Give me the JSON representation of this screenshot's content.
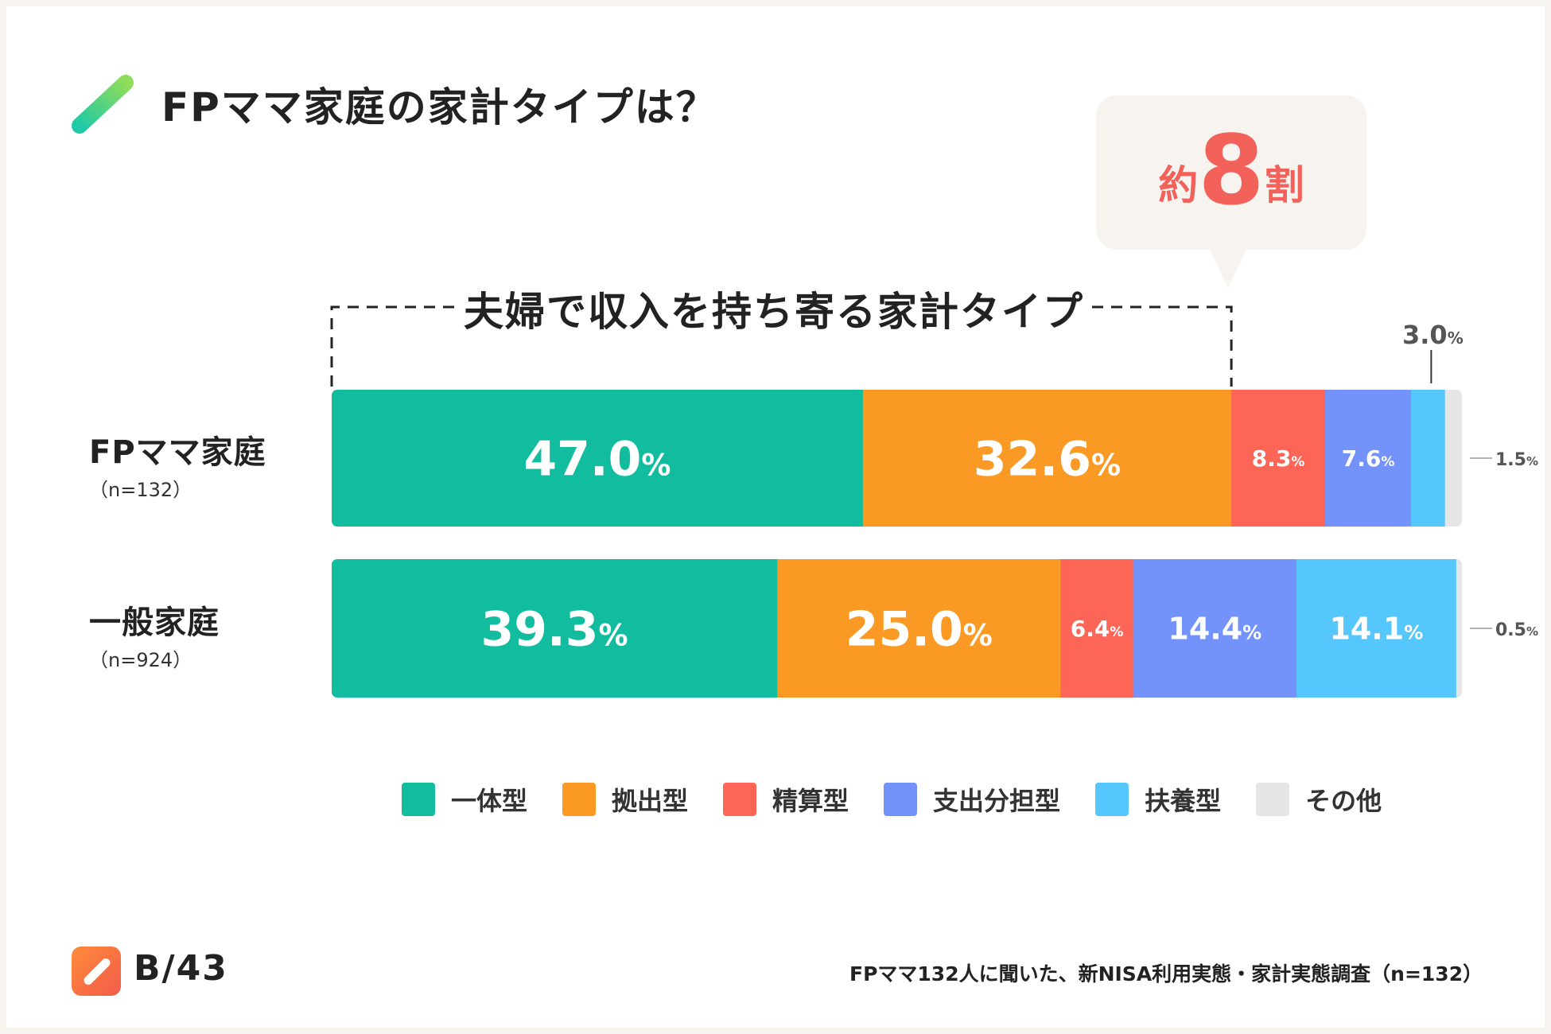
{
  "page": {
    "title": "FPママ家庭の家計タイプは？",
    "callout": {
      "prefix": "約",
      "number": "8",
      "suffix": "割"
    },
    "bracket_label": "夫婦で収入を持ち寄る家計タイプ",
    "brand": "B/43",
    "source": "FPママ132人に聞いた、新NISA利用実態・家計実態調査（n=132）"
  },
  "colors": {
    "title_gradient_start": "#20c9a6",
    "title_gradient_end": "#8fdc5a",
    "callout_text": "#f2625a"
  },
  "chart_data": {
    "type": "bar",
    "orientation": "horizontal-stacked-100",
    "categories": [
      "FPママ家庭",
      "一般家庭"
    ],
    "category_n": [
      "（n=132）",
      "（n=924）"
    ],
    "series": [
      {
        "name": "一体型",
        "color": "#12bc9f",
        "values": [
          47.0,
          39.3
        ],
        "labels": [
          "47.0",
          "39.3"
        ]
      },
      {
        "name": "拠出型",
        "color": "#fa9a25",
        "values": [
          32.6,
          25.0
        ],
        "labels": [
          "32.6",
          "25.0"
        ]
      },
      {
        "name": "精算型",
        "color": "#fd6557",
        "values": [
          8.3,
          6.4
        ],
        "labels": [
          "8.3",
          "6.4"
        ]
      },
      {
        "name": "支出分担型",
        "color": "#7393fb",
        "values": [
          7.6,
          14.4
        ],
        "labels": [
          "7.6",
          "14.4"
        ]
      },
      {
        "name": "扶養型",
        "color": "#55c7fc",
        "values": [
          3.0,
          14.1
        ],
        "labels": [
          "3.0",
          "14.1"
        ]
      },
      {
        "name": "その他",
        "color": "#e6e6e6",
        "values": [
          1.5,
          0.5
        ],
        "labels": [
          "1.5",
          "0.5"
        ]
      }
    ],
    "unit": "%",
    "xlim": [
      0,
      100
    ],
    "legend": "bottom"
  }
}
